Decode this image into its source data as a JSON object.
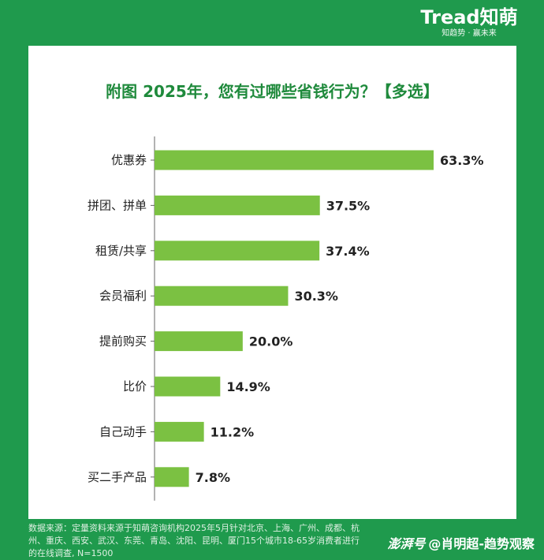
{
  "brand": {
    "logo": "Tread知萌",
    "tagline": "知趋势 · 赢未来"
  },
  "footer": {
    "source": "数据来源：定量资料来源于知萌咨询机构2025年5月针对北京、上海、广州、成都、杭州、重庆、西安、武汉、东莞、青岛、沈阳、昆明、厦门15个城市18-65岁消费者进行的在线调查, N=1500"
  },
  "watermark": {
    "logo": "澎湃号",
    "author": "@肖明超-趋势观察"
  },
  "colors": {
    "bar": "#7bc142",
    "title": "#1f8a3c",
    "background": "#1f9a4d"
  },
  "chart_data": {
    "type": "bar",
    "orientation": "horizontal",
    "title": "附图 2025年，您有过哪些省钱行为？【多选】",
    "categories": [
      "优惠券",
      "拼团、拼单",
      "租赁/共享",
      "会员福利",
      "提前购买",
      "比价",
      "自己动手",
      "买二手产品"
    ],
    "values": [
      63.3,
      37.5,
      37.4,
      30.3,
      20.0,
      14.9,
      11.2,
      7.8
    ],
    "value_labels": [
      "63.3%",
      "37.5%",
      "37.4%",
      "30.3%",
      "20.0%",
      "14.9%",
      "11.2%",
      "7.8%"
    ],
    "xlabel": "",
    "ylabel": "",
    "xlim": [
      0,
      63.3
    ],
    "grid": false,
    "legend": "none"
  }
}
